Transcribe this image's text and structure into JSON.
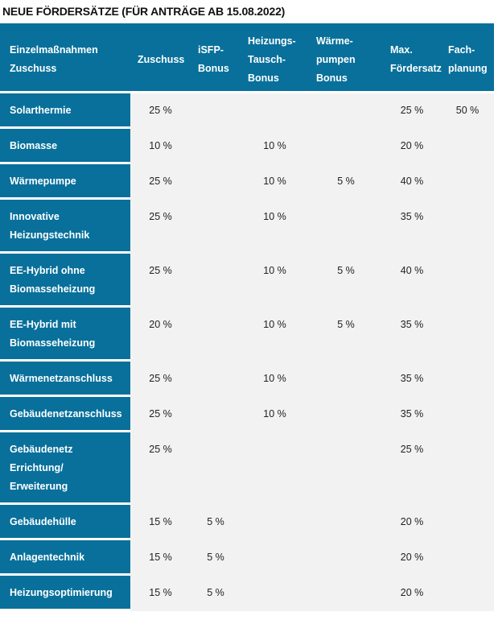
{
  "title": "NEUE FÖRDERSÄTZE (FÜR ANTRÄGE AB 15.08.2022)",
  "table": {
    "header": [
      "Einzelmaßnahmen\nZuschuss",
      "Zuschuss",
      "iSFP-\nBonus",
      "Heizungs-\nTausch-\nBonus",
      "Wärme-\npumpen\nBonus",
      "Max.\nFördersatz",
      "Fach-\nplanung"
    ],
    "rows": [
      [
        "Solarthermie",
        "25 %",
        null,
        null,
        null,
        "25 %",
        "50 %"
      ],
      [
        "Biomasse",
        "10 %",
        null,
        "10 %",
        null,
        "20 %",
        null
      ],
      [
        "Wärmepumpe",
        "25 %",
        null,
        "10 %",
        "5 %",
        "40 %",
        null
      ],
      [
        "Innovative\nHeizungstechnik",
        "25 %",
        null,
        "10 %",
        null,
        "35 %",
        null
      ],
      [
        "EE-Hybrid ohne\nBiomasseheizung",
        "25 %",
        null,
        "10 %",
        "5 %",
        "40 %",
        null
      ],
      [
        "EE-Hybrid mit\nBiomasseheizung",
        "20 %",
        null,
        "10 %",
        "5 %",
        "35 %",
        null
      ],
      [
        "Wärmenetzanschluss",
        "25 %",
        null,
        "10 %",
        null,
        "35 %",
        null
      ],
      [
        "Gebäudenetzanschluss",
        "25 %",
        null,
        "10 %",
        null,
        "35 %",
        null
      ],
      [
        "Gebäudenetz\nErrichtung/\nErweiterung",
        "25 %",
        null,
        null,
        null,
        "25 %",
        null
      ],
      [
        "Gebäudehülle",
        "15 %",
        "5 %",
        null,
        null,
        "20 %",
        null
      ],
      [
        "Anlagentechnik",
        "15 %",
        "5 %",
        null,
        null,
        "20 %",
        null
      ],
      [
        "Heizungsoptimierung",
        "15 %",
        "5 %",
        null,
        null,
        "20 %",
        null
      ]
    ]
  }
}
